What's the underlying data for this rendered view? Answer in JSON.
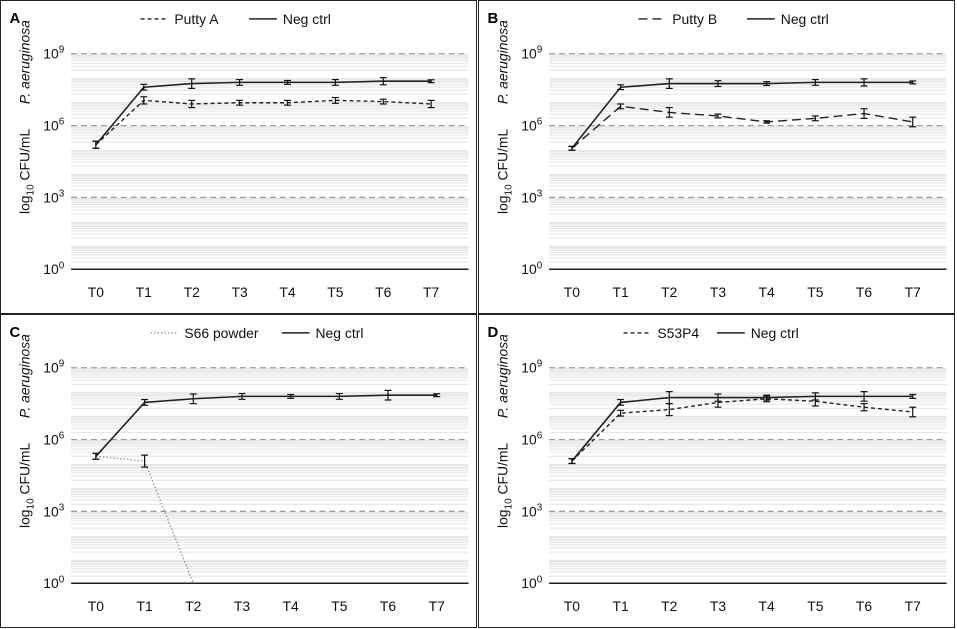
{
  "chart_data": [
    {
      "panel": "A",
      "type": "line",
      "categories": [
        "T0",
        "T1",
        "T2",
        "T3",
        "T4",
        "T5",
        "T6",
        "T7"
      ],
      "ylabel_organism": "P. aeruginosa",
      "ylabel_units": {
        "pre": "log",
        "sub": "10",
        "post": " CFU/mL"
      },
      "yscale": "log10",
      "ylim_exp": [
        0,
        9
      ],
      "yticks": [
        {
          "exp": 0,
          "base": "10",
          "sup": "0"
        },
        {
          "exp": 3,
          "base": "10",
          "sup": "3"
        },
        {
          "exp": 6,
          "base": "10",
          "sup": "6"
        },
        {
          "exp": 9,
          "base": "10",
          "sup": "9"
        }
      ],
      "series": [
        {
          "name": "Putty A",
          "style": "dashed",
          "color": "#222222",
          "log10_values": [
            5.2,
            7.05,
            6.9,
            6.95,
            6.95,
            7.05,
            7.0,
            6.9
          ],
          "log10_err": [
            0.15,
            0.15,
            0.15,
            0.1,
            0.1,
            0.12,
            0.1,
            0.15
          ]
        },
        {
          "name": "Neg ctrl",
          "style": "solid",
          "color": "#222222",
          "log10_values": [
            5.2,
            7.6,
            7.75,
            7.8,
            7.8,
            7.8,
            7.85,
            7.85
          ],
          "log10_err": [
            0.15,
            0.12,
            0.2,
            0.12,
            0.08,
            0.12,
            0.15,
            0.06
          ]
        }
      ]
    },
    {
      "panel": "B",
      "type": "line",
      "categories": [
        "T0",
        "T1",
        "T2",
        "T3",
        "T4",
        "T5",
        "T6",
        "T7"
      ],
      "ylabel_organism": "P. aeruginosa",
      "ylabel_units": {
        "pre": "log",
        "sub": "10",
        "post": " CFU/mL"
      },
      "yscale": "log10",
      "ylim_exp": [
        0,
        9
      ],
      "yticks": [
        {
          "exp": 0,
          "base": "10",
          "sup": "0"
        },
        {
          "exp": 3,
          "base": "10",
          "sup": "3"
        },
        {
          "exp": 6,
          "base": "10",
          "sup": "6"
        },
        {
          "exp": 9,
          "base": "10",
          "sup": "9"
        }
      ],
      "series": [
        {
          "name": "Putty B",
          "style": "longdash",
          "color": "#222222",
          "log10_values": [
            5.05,
            6.8,
            6.55,
            6.4,
            6.15,
            6.3,
            6.5,
            6.15
          ],
          "log10_err": [
            0.08,
            0.1,
            0.2,
            0.08,
            0.05,
            0.1,
            0.2,
            0.2
          ]
        },
        {
          "name": "Neg ctrl",
          "style": "solid",
          "color": "#222222",
          "log10_values": [
            5.05,
            7.6,
            7.75,
            7.75,
            7.75,
            7.8,
            7.8,
            7.8
          ],
          "log10_err": [
            0.08,
            0.1,
            0.2,
            0.12,
            0.08,
            0.12,
            0.15,
            0.06
          ]
        }
      ]
    },
    {
      "panel": "C",
      "type": "line",
      "categories": [
        "T0",
        "T1",
        "T2",
        "T3",
        "T4",
        "T5",
        "T6",
        "T7"
      ],
      "ylabel_organism": "P. aeruginosa",
      "ylabel_units": {
        "pre": "log",
        "sub": "10",
        "post": " CFU/mL"
      },
      "yscale": "log10",
      "ylim_exp": [
        0,
        9
      ],
      "yticks": [
        {
          "exp": 0,
          "base": "10",
          "sup": "0"
        },
        {
          "exp": 3,
          "base": "10",
          "sup": "3"
        },
        {
          "exp": 6,
          "base": "10",
          "sup": "6"
        },
        {
          "exp": 9,
          "base": "10",
          "sup": "9"
        }
      ],
      "series": [
        {
          "name": "S66 powder",
          "style": "dotted",
          "color": "#999999",
          "log10_values": [
            5.3,
            5.1,
            0,
            null,
            null,
            null,
            null,
            null
          ],
          "log10_err": [
            0.12,
            0.25,
            0,
            null,
            null,
            null,
            null,
            null
          ]
        },
        {
          "name": "Neg ctrl",
          "style": "solid",
          "color": "#222222",
          "log10_values": [
            5.3,
            7.55,
            7.7,
            7.8,
            7.8,
            7.8,
            7.85,
            7.85
          ],
          "log10_err": [
            0.12,
            0.12,
            0.2,
            0.12,
            0.08,
            0.12,
            0.2,
            0.06
          ]
        }
      ]
    },
    {
      "panel": "D",
      "type": "line",
      "categories": [
        "T0",
        "T1",
        "T2",
        "T3",
        "T4",
        "T5",
        "T6",
        "T7"
      ],
      "ylabel_organism": "P. aeruginosa",
      "ylabel_units": {
        "pre": "log",
        "sub": "10",
        "post": " CFU/mL"
      },
      "yscale": "log10",
      "ylim_exp": [
        0,
        9
      ],
      "yticks": [
        {
          "exp": 0,
          "base": "10",
          "sup": "0"
        },
        {
          "exp": 3,
          "base": "10",
          "sup": "3"
        },
        {
          "exp": 6,
          "base": "10",
          "sup": "6"
        },
        {
          "exp": 9,
          "base": "10",
          "sup": "9"
        }
      ],
      "series": [
        {
          "name": "S53P4",
          "style": "dashed",
          "color": "#222222",
          "log10_values": [
            5.1,
            7.1,
            7.25,
            7.55,
            7.7,
            7.6,
            7.35,
            7.15
          ],
          "log10_err": [
            0.1,
            0.12,
            0.25,
            0.2,
            0.12,
            0.2,
            0.15,
            0.2
          ]
        },
        {
          "name": "Neg ctrl",
          "style": "solid",
          "color": "#222222",
          "log10_values": [
            5.1,
            7.55,
            7.75,
            7.75,
            7.75,
            7.8,
            7.8,
            7.8
          ],
          "log10_err": [
            0.1,
            0.12,
            0.25,
            0.15,
            0.1,
            0.15,
            0.2,
            0.08
          ]
        }
      ]
    }
  ],
  "colors": {
    "major_grid": "#9a9a9a",
    "minor_grid": "#e3e3e3",
    "axis": "#222222"
  }
}
